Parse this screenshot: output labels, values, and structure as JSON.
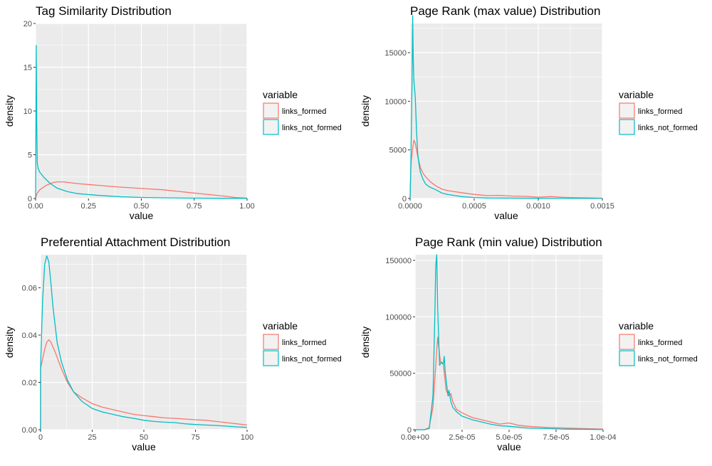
{
  "colors": {
    "links_formed": "#F8766D",
    "links_not_formed": "#00BFC4",
    "panel_bg": "#EBEBEB",
    "grid": "#FFFFFF"
  },
  "legend": {
    "title": "variable",
    "items": [
      "links_formed",
      "links_not_formed"
    ]
  },
  "chart_data": [
    {
      "type": "line",
      "title": "Tag Similarity Distribution",
      "xlabel": "value",
      "ylabel": "density",
      "xlim": [
        0,
        1
      ],
      "ylim": [
        0,
        20
      ],
      "xticks": [
        0,
        0.25,
        0.5,
        0.75,
        1.0
      ],
      "xtick_labels": [
        "0.00",
        "0.25",
        "0.50",
        "0.75",
        "1.00"
      ],
      "yticks": [
        0,
        5,
        10,
        15,
        20
      ],
      "ytick_labels": [
        "0",
        "5",
        "10",
        "15",
        "20"
      ],
      "grid": true,
      "legend_position": "right",
      "series": [
        {
          "name": "links_formed",
          "x": [
            0,
            0.005,
            0.02,
            0.05,
            0.08,
            0.1,
            0.13,
            0.2,
            0.3,
            0.4,
            0.5,
            0.6,
            0.7,
            0.8,
            0.9,
            0.95,
            1.0
          ],
          "y": [
            0,
            0.5,
            1.0,
            1.5,
            1.8,
            1.9,
            1.9,
            1.7,
            1.5,
            1.3,
            1.15,
            1.0,
            0.75,
            0.5,
            0.25,
            0.1,
            0.05
          ]
        },
        {
          "name": "links_not_formed",
          "x": [
            0,
            0.003,
            0.005,
            0.008,
            0.012,
            0.02,
            0.04,
            0.07,
            0.1,
            0.15,
            0.2,
            0.3,
            0.4,
            0.5,
            0.6,
            0.7,
            0.8,
            0.9,
            1.0
          ],
          "y": [
            0,
            17.5,
            9.0,
            4.0,
            3.4,
            3.0,
            2.4,
            1.7,
            1.2,
            0.8,
            0.55,
            0.35,
            0.2,
            0.12,
            0.08,
            0.05,
            0.03,
            0.02,
            0.02
          ]
        }
      ]
    },
    {
      "type": "line",
      "title": "Page Rank (max value) Distribution",
      "xlabel": "value",
      "ylabel": "density",
      "xlim": [
        0,
        0.0015
      ],
      "ylim": [
        0,
        18000
      ],
      "xticks": [
        0,
        0.0005,
        0.001,
        0.0015
      ],
      "xtick_labels": [
        "0.0000",
        "0.0005",
        "0.0010",
        "0.0015"
      ],
      "yticks": [
        0,
        5000,
        10000,
        15000
      ],
      "ytick_labels": [
        "0",
        "5000",
        "10000",
        "15000"
      ],
      "grid": true,
      "legend_position": "right",
      "series": [
        {
          "name": "links_formed",
          "x": [
            0,
            5e-06,
            1e-05,
            2e-05,
            3e-05,
            4e-05,
            6e-05,
            8e-05,
            0.0001,
            0.00013,
            0.00016,
            0.0002,
            0.00025,
            0.0003,
            0.0004,
            0.0005,
            0.0006,
            0.0007,
            0.0008,
            0.0009,
            0.001,
            0.0011,
            0.0012,
            0.0013,
            0.0014,
            0.0015
          ],
          "y": [
            0,
            3000,
            4000,
            5200,
            6000,
            5700,
            4300,
            3200,
            2600,
            2100,
            1700,
            1300,
            950,
            800,
            600,
            420,
            300,
            320,
            250,
            220,
            140,
            200,
            120,
            80,
            60,
            30
          ]
        },
        {
          "name": "links_not_formed",
          "x": [
            0,
            5e-06,
            1.5e-05,
            2e-05,
            2.5e-05,
            3e-05,
            4e-05,
            5e-05,
            6e-05,
            7e-05,
            8e-05,
            0.0001,
            0.00012,
            0.00015,
            0.0002,
            0.00025,
            0.0003,
            0.00035,
            0.0004,
            0.0005,
            0.0006,
            0.001,
            0.0015
          ],
          "y": [
            0,
            3000,
            12000,
            18800,
            14000,
            12000,
            10500,
            7000,
            4500,
            3500,
            2700,
            2000,
            1500,
            1200,
            900,
            550,
            400,
            300,
            200,
            100,
            50,
            20,
            10
          ]
        }
      ]
    },
    {
      "type": "line",
      "title": "Preferential Attachment Distribution",
      "xlabel": "value",
      "ylabel": "density",
      "xlim": [
        0,
        100
      ],
      "ylim": [
        0,
        0.074
      ],
      "xticks": [
        0,
        25,
        50,
        75,
        100
      ],
      "xtick_labels": [
        "0",
        "25",
        "50",
        "75",
        "100"
      ],
      "yticks": [
        0,
        0.02,
        0.04,
        0.06
      ],
      "ytick_labels": [
        "0.00",
        "0.02",
        "0.04",
        "0.06"
      ],
      "grid": true,
      "legend_position": "right",
      "series": [
        {
          "name": "links_formed",
          "x": [
            0,
            0.01,
            1,
            2,
            3,
            4,
            5,
            7,
            10,
            13,
            16,
            20,
            25,
            30,
            35,
            40,
            45,
            50,
            55,
            60,
            65,
            70,
            75,
            80,
            85,
            90,
            95,
            100
          ],
          "y": [
            0,
            0.026,
            0.03,
            0.034,
            0.037,
            0.038,
            0.037,
            0.033,
            0.026,
            0.02,
            0.016,
            0.0135,
            0.011,
            0.0095,
            0.0085,
            0.0075,
            0.0065,
            0.006,
            0.0055,
            0.005,
            0.0048,
            0.0045,
            0.0042,
            0.004,
            0.0035,
            0.003,
            0.0025,
            0.002
          ]
        },
        {
          "name": "links_not_formed",
          "x": [
            0,
            0.01,
            1,
            2,
            3,
            4,
            5,
            6,
            8,
            10,
            13,
            16,
            20,
            25,
            30,
            35,
            40,
            45,
            50,
            55,
            60,
            65,
            70,
            75,
            80,
            85,
            90,
            95,
            100
          ],
          "y": [
            0,
            0.027,
            0.055,
            0.07,
            0.0735,
            0.071,
            0.062,
            0.052,
            0.037,
            0.029,
            0.021,
            0.016,
            0.012,
            0.009,
            0.0075,
            0.0065,
            0.0055,
            0.0048,
            0.004,
            0.0035,
            0.0032,
            0.003,
            0.0025,
            0.0022,
            0.002,
            0.0018,
            0.0015,
            0.0012,
            0.001
          ]
        }
      ]
    },
    {
      "type": "line",
      "title": "Page Rank (min value) Distribution",
      "xlabel": "value",
      "ylabel": "density",
      "xlim": [
        0,
        0.0001
      ],
      "ylim": [
        0,
        155000
      ],
      "xticks": [
        0,
        2.5e-05,
        5e-05,
        7.5e-05,
        0.0001
      ],
      "xtick_labels": [
        "0.0e+00",
        "2.5e-05",
        "5.0e-05",
        "7.5e-05",
        "1.0e-04"
      ],
      "yticks": [
        0,
        50000,
        100000,
        150000
      ],
      "ytick_labels": [
        "0",
        "50000",
        "100000",
        "150000"
      ],
      "grid": true,
      "legend_position": "right",
      "series": [
        {
          "name": "links_formed",
          "x": [
            0,
            5e-06,
            7.5e-06,
            9.5e-06,
            1.05e-05,
            1.2e-05,
            1.35e-05,
            1.5e-05,
            1.65e-05,
            1.8e-05,
            1.9e-05,
            2e-05,
            2.2e-05,
            2.5e-05,
            3e-05,
            3.5e-05,
            4e-05,
            4.5e-05,
            5e-05,
            5.5e-05,
            6e-05,
            7e-05,
            8e-05,
            9e-05,
            0.0001
          ],
          "y": [
            0,
            0,
            2000,
            20000,
            45000,
            82000,
            60000,
            58000,
            35000,
            30000,
            32000,
            25000,
            18000,
            15000,
            11000,
            9000,
            7000,
            5000,
            6000,
            4000,
            3000,
            2000,
            1500,
            1000,
            500
          ]
        },
        {
          "name": "links_not_formed",
          "x": [
            0,
            5e-06,
            7.5e-06,
            9.5e-06,
            1.05e-05,
            1.1e-05,
            1.15e-05,
            1.2e-05,
            1.3e-05,
            1.4e-05,
            1.5e-05,
            1.55e-05,
            1.6e-05,
            1.75e-05,
            1.8e-05,
            1.9e-05,
            2e-05,
            2.2e-05,
            2.5e-05,
            3e-05,
            3.5e-05,
            4e-05,
            4.5e-05,
            5e-05,
            6e-05,
            7e-05,
            8e-05,
            0.0001
          ],
          "y": [
            0,
            0,
            1000,
            30000,
            100000,
            145000,
            155000,
            110000,
            57000,
            60000,
            58000,
            65000,
            52000,
            30000,
            35000,
            25000,
            20000,
            16000,
            12000,
            9000,
            7000,
            5000,
            3500,
            3000,
            1500,
            1000,
            500,
            200
          ]
        }
      ]
    }
  ]
}
